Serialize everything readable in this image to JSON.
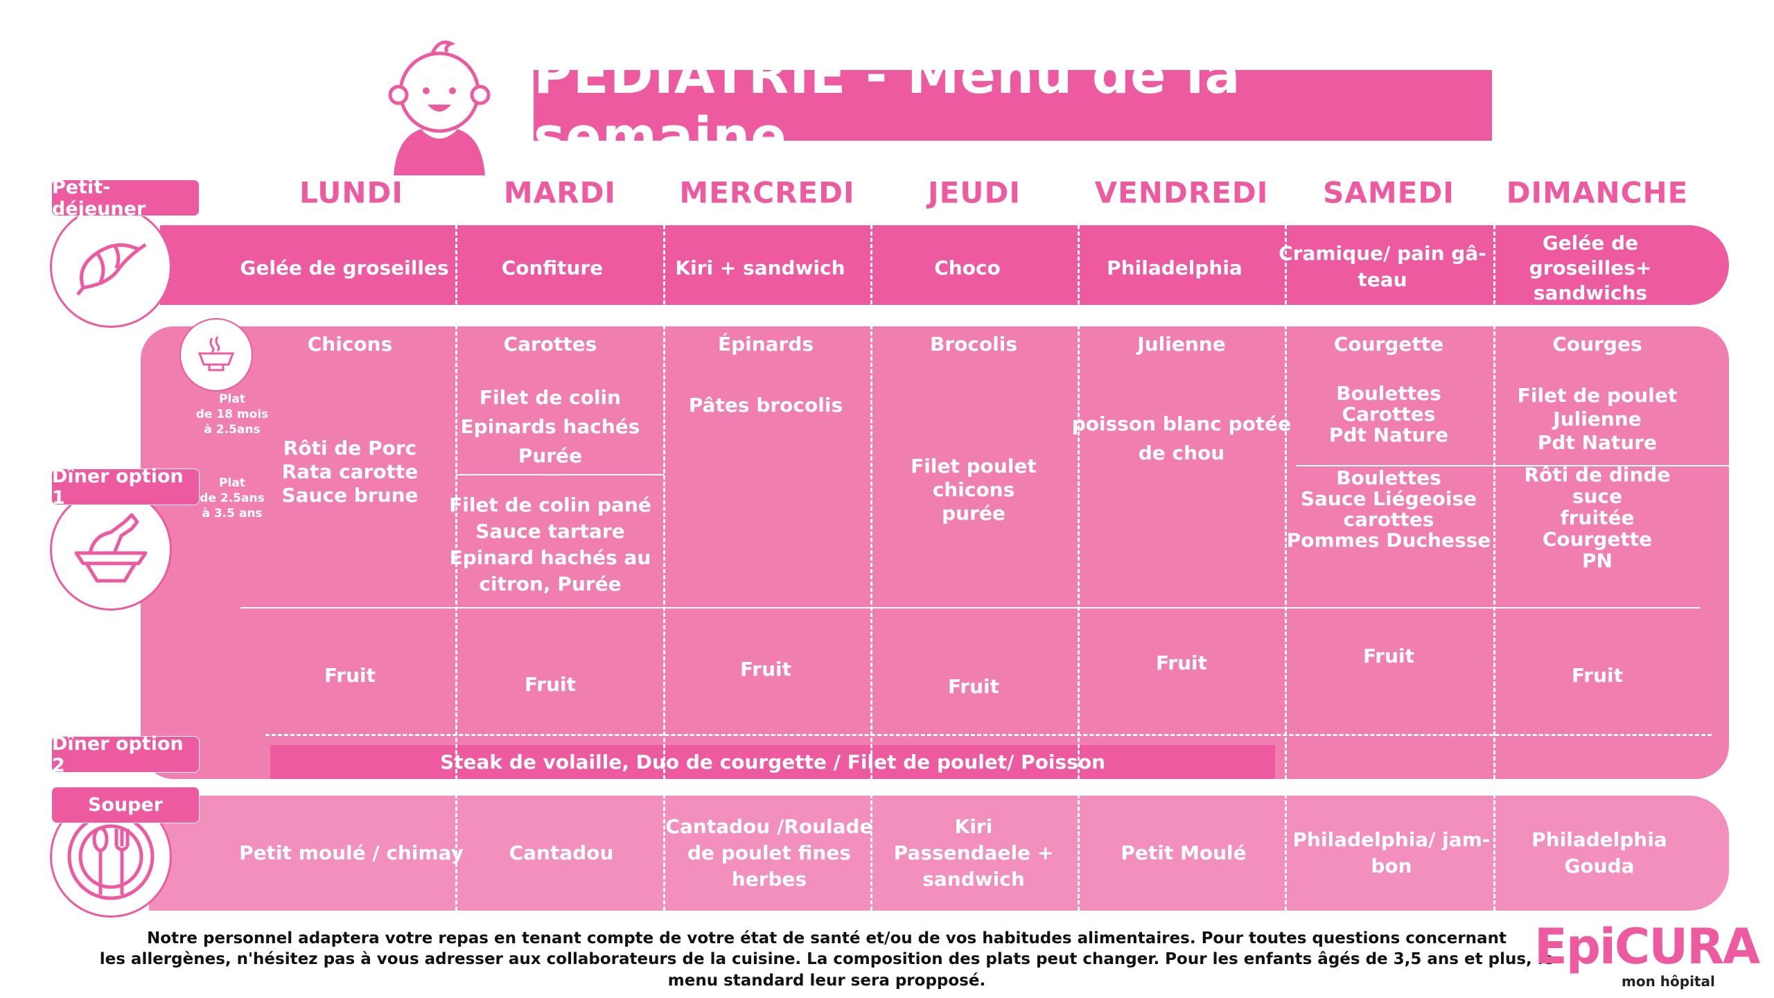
{
  "title": "PÉDIATRIE - Menu de la semaine",
  "days": [
    "LUNDI",
    "MARDI",
    "MERCREDI",
    "JEUDI",
    "VENDREDI",
    "SAMEDI",
    "DIMANCHE"
  ],
  "sections": {
    "breakfast": "Petit-déjeuner",
    "dinner1": "Dîner option 1",
    "dinner2": "Dîner option 2",
    "supper": "Souper"
  },
  "age_labels": {
    "young": "Plat\nde 18 mois\nà 2.5ans",
    "older": "Plat\nde 2.5ans\nà 3.5 ans"
  },
  "breakfast": [
    "Gelée de groseilles",
    "Confiture",
    "Kiri + sandwich",
    "Choco",
    "Philadelphia",
    "Cramique/ pain gâ-\nteau",
    "Gelée de\ngroseilles+\nsandwichs"
  ],
  "dinner1": {
    "vegetables": [
      "Chicons",
      "Carottes",
      "Épinards",
      "Brocolis",
      "Julienne",
      "Courgette",
      "Courges"
    ],
    "lundi": "Rôti de Porc\nRata carotte\nSauce brune",
    "mardi_young": "Filet de colin\nEpinards hachés\nPurée",
    "mardi_older": "Filet de colin pané\nSauce tartare\nEpinard hachés au\ncitron, Purée",
    "mercredi": "Pâtes brocolis",
    "jeudi": "Filet poulet\nchicons\npurée",
    "vendredi": "poisson blanc potée\nde chou",
    "samedi_young": "Boulettes\nCarottes\nPdt Nature",
    "samedi_older": "Boulettes\nSauce Liégeoise\ncarottes\nPommes Duchesse",
    "dimanche_young": "Filet de poulet\nJulienne\nPdt Nature",
    "dimanche_older": "Rôti de dinde suce\nfruitée\nCourgette\nPN",
    "dessert": [
      "Fruit",
      "Fruit",
      "Fruit",
      "Fruit",
      "Fruit",
      "Fruit",
      "Fruit"
    ]
  },
  "dinner2": "Steak de volaille, Duo de courgette / Filet de poulet/ Poisson",
  "supper": [
    "Petit moulé / chimay",
    "Cantadou",
    "Cantadou /Roulade\nde poulet fines\nherbes",
    "Kiri\nPassendaele +\nsandwich",
    "Petit Moulé",
    "Philadelphia/ jam-\nbon",
    "Philadelphia\nGouda"
  ],
  "footer": [
    "Notre personnel adaptera votre repas en tenant compte de votre état de santé et/ou de vos habitudes alimentaires. Pour toutes questions concernant",
    "les allergènes, n'hésitez pas à vous adresser aux collaborateurs de la cuisine. La composition des plats peut changer. Pour les enfants âgés de 3,5 ans et plus, le",
    "menu standard leur sera propposé."
  ],
  "logo": {
    "name": "EpiCURA",
    "tagline": "mon hôpital"
  },
  "colors": {
    "primary": "#ee5a9f",
    "dinner": "#f07fb0",
    "supper": "#f28fbc"
  }
}
